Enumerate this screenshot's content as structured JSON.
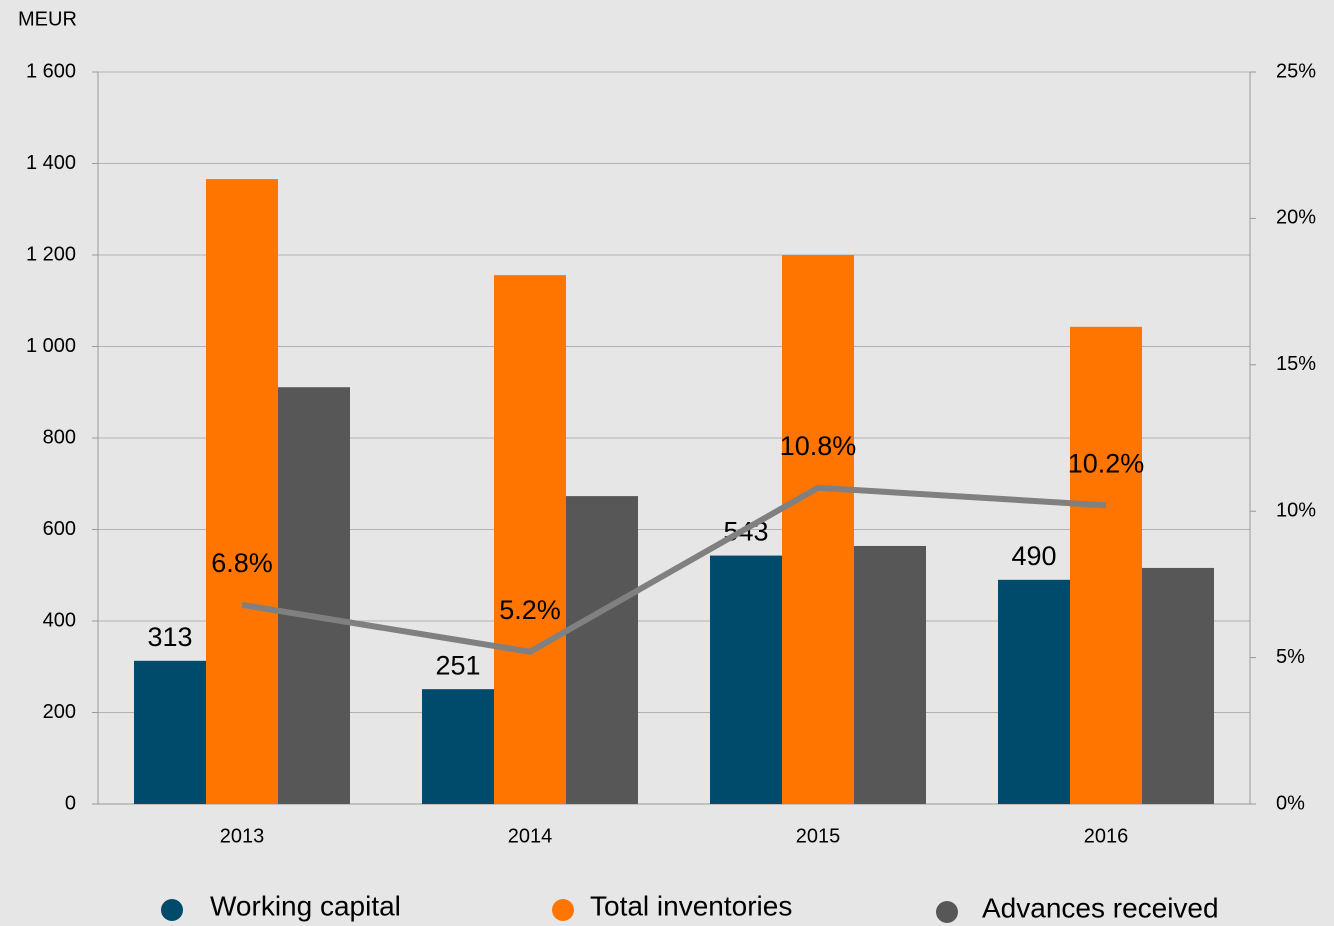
{
  "chart_data": {
    "type": "bar",
    "y_axis_label": "MEUR",
    "categories": [
      "2013",
      "2014",
      "2015",
      "2016"
    ],
    "series": [
      {
        "name": "Working capital",
        "color": "#004a6b",
        "values": [
          313,
          251,
          543,
          490
        ],
        "data_labels": true
      },
      {
        "name": "Total inventories",
        "color": "#ff7500",
        "values": [
          1366,
          1156,
          1200,
          1043
        ]
      },
      {
        "name": "Advances received",
        "color": "#575757",
        "values": [
          911,
          673,
          564,
          516
        ]
      },
      {
        "type": "line",
        "axis": "y2",
        "color": "#808080",
        "values": [
          6.8,
          5.2,
          10.8,
          10.2
        ],
        "value_labels": [
          "6.8%",
          "5.2%",
          "10.8%",
          "10.2%"
        ]
      }
    ],
    "ylim": [
      0,
      1600
    ],
    "yticks": [
      0,
      200,
      400,
      600,
      800,
      {
        "value": 1000,
        "label": "1 000"
      },
      {
        "value": 1200,
        "label": "1 200"
      },
      {
        "value": 1400,
        "label": "1 400"
      },
      {
        "value": 1600,
        "label": "1 600"
      }
    ],
    "y2lim": [
      0,
      25
    ],
    "y2ticks": [
      {
        "value": 0,
        "label": "0%"
      },
      {
        "value": 5,
        "label": "5%"
      },
      {
        "value": 10,
        "label": "10%"
      },
      {
        "value": 15,
        "label": "15%"
      },
      {
        "value": 20,
        "label": "20%"
      },
      {
        "value": 25,
        "label": "25%"
      }
    ],
    "grid": true,
    "legend": "bottom"
  }
}
